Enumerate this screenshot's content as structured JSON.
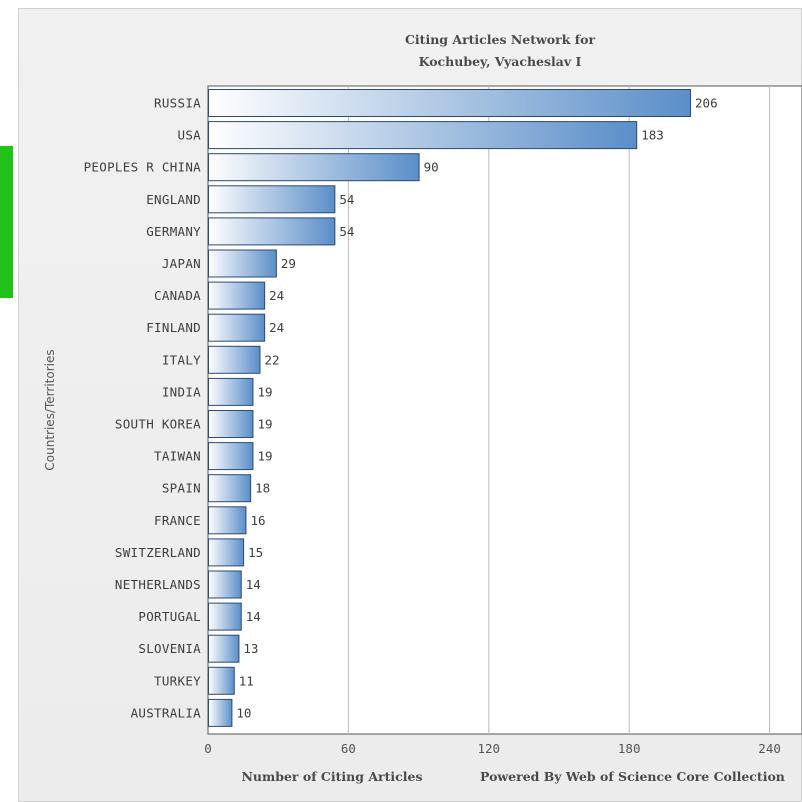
{
  "chart_data": {
    "type": "bar",
    "orientation": "horizontal",
    "title_line1": "Citing Articles Network for",
    "title_line2": "Kochubey, Vyacheslav I",
    "xlabel": "Number of Citing Articles",
    "ylabel": "Countries/Territories",
    "footer": "Powered By Web of Science Core Collection",
    "xlim": [
      0,
      300
    ],
    "xticks": [
      0,
      60,
      120,
      180,
      240,
      300
    ],
    "grid": true,
    "categories": [
      "RUSSIA",
      "USA",
      "PEOPLES R CHINA",
      "ENGLAND",
      "GERMANY",
      "JAPAN",
      "CANADA",
      "FINLAND",
      "ITALY",
      "INDIA",
      "SOUTH KOREA",
      "TAIWAN",
      "SPAIN",
      "FRANCE",
      "SWITZERLAND",
      "NETHERLANDS",
      "PORTUGAL",
      "SLOVENIA",
      "TURKEY",
      "AUSTRALIA"
    ],
    "values": [
      206,
      183,
      90,
      54,
      54,
      29,
      24,
      24,
      22,
      19,
      19,
      19,
      18,
      16,
      15,
      14,
      14,
      13,
      11,
      10
    ],
    "bar_color_start": "#ffffff",
    "bar_color_end": "#5b8ec9",
    "bar_border": "#2e4a6e"
  },
  "accent_marker_color": "#22c21b"
}
